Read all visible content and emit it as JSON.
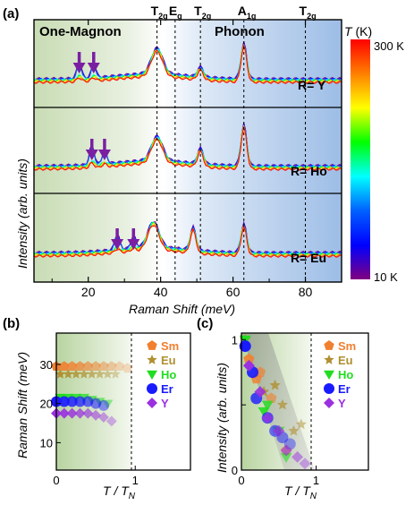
{
  "panel_a": {
    "label": "(a)",
    "region_left": "One-Magnon",
    "region_right": "Phonon",
    "colorbar": {
      "title_var": "T",
      "title_unit": " (K)",
      "top_label": "300 K",
      "bottom_label": "10 K",
      "stops": [
        "#ff0000",
        "#ff8000",
        "#ffff00",
        "#00ff00",
        "#00ffff",
        "#0060ff",
        "#0000ff",
        "#800080"
      ]
    },
    "modes": [
      {
        "label": "T",
        "sub": "2g",
        "x": 39
      },
      {
        "label": "E",
        "sub": "g",
        "x": 44
      },
      {
        "label": "T",
        "sub": "2g",
        "x": 51
      },
      {
        "label": "A",
        "sub": "1g",
        "x": 63
      },
      {
        "label": "T",
        "sub": "2g",
        "x": 80
      }
    ],
    "rows": [
      {
        "label": "R= Y",
        "magnon_arrows": [
          17.5,
          21.5
        ]
      },
      {
        "label": "R= Ho",
        "magnon_arrows": [
          21,
          24.5
        ]
      },
      {
        "label": "R= Eu",
        "magnon_arrows": [
          28,
          32.5
        ]
      }
    ],
    "xlabel": "Raman Shift (meV)",
    "ylabel": "Intensity (arb. units)",
    "xticks": [
      20,
      40,
      60,
      80
    ]
  },
  "panel_b": {
    "label": "(b)",
    "ylabel": "Raman Shift (meV)",
    "xlabel_main": "T / T",
    "xlabel_sub": "N",
    "yticks": [
      10,
      20,
      30
    ],
    "xticks": [
      0,
      1
    ],
    "legend": [
      {
        "name": "Sm",
        "color": "#f08030",
        "marker": "pentagon"
      },
      {
        "name": "Eu",
        "color": "#b09030",
        "marker": "star"
      },
      {
        "name": "Ho",
        "color": "#20dd20",
        "marker": "triangle"
      },
      {
        "name": "Er",
        "color": "#1a1aff",
        "marker": "circle"
      },
      {
        "name": "Y",
        "color": "#9a30e0",
        "marker": "diamond"
      }
    ]
  },
  "panel_c": {
    "label": "(c)",
    "ylabel": "Intensity (arb. units)",
    "xlabel_main": "T / T",
    "xlabel_sub": "N",
    "yticks": [
      0,
      0.5,
      1
    ],
    "ytick_labels": [
      "0",
      "",
      "1"
    ],
    "xticks": [
      0,
      1
    ]
  },
  "chart_data": [
    {
      "type": "line",
      "xlabel": "Raman Shift (meV)",
      "ylabel": "Intensity (arb. units)",
      "xlim": [
        5,
        90
      ],
      "series": [
        {
          "name": "R= Y",
          "peaks_meV": [
            17.5,
            21.5,
            39,
            51,
            63
          ]
        },
        {
          "name": "R= Ho",
          "peaks_meV": [
            21,
            24.5,
            39,
            51,
            63
          ]
        },
        {
          "name": "R= Eu",
          "peaks_meV": [
            28,
            32.5,
            38,
            49,
            63
          ]
        }
      ],
      "colorbar_range_K": [
        10,
        300
      ]
    },
    {
      "type": "scatter",
      "xlabel": "T / TN",
      "ylabel": "Raman Shift (meV)",
      "xlim": [
        0,
        1.7
      ],
      "ylim": [
        3,
        38
      ],
      "series": [
        {
          "name": "Sm",
          "x": [
            0.0,
            0.1,
            0.2,
            0.3,
            0.4,
            0.5,
            0.6,
            0.7,
            0.8,
            0.9
          ],
          "y": [
            29.5,
            29.5,
            29.5,
            29.5,
            29.5,
            29.5,
            29.5,
            29.5,
            29.5,
            29.0
          ]
        },
        {
          "name": "Eu",
          "x": [
            0.05,
            0.15,
            0.25,
            0.35,
            0.45,
            0.55,
            0.65,
            0.75
          ],
          "y": [
            27.5,
            27.5,
            27.5,
            27.5,
            27.5,
            27.5,
            27.5,
            27.5
          ]
        },
        {
          "name": "Ho",
          "x": [
            0.05,
            0.15,
            0.25,
            0.35,
            0.45,
            0.55,
            0.65
          ],
          "y": [
            21.5,
            21.5,
            21.5,
            21.5,
            21,
            20.5,
            20
          ]
        },
        {
          "name": "Er",
          "x": [
            0.0,
            0.1,
            0.2,
            0.3,
            0.4,
            0.5,
            0.6
          ],
          "y": [
            20.5,
            20.5,
            20.5,
            20.5,
            20.5,
            20,
            19.5
          ]
        },
        {
          "name": "Y",
          "x": [
            0.0,
            0.1,
            0.2,
            0.3,
            0.4,
            0.5,
            0.6,
            0.7
          ],
          "y": [
            17.5,
            17.5,
            17.5,
            17.5,
            17.5,
            17,
            16.5,
            15.5
          ]
        }
      ]
    },
    {
      "type": "scatter",
      "xlabel": "T / TN",
      "ylabel": "Intensity (arb. units)",
      "xlim": [
        0,
        1.7
      ],
      "ylim": [
        0,
        1.05
      ],
      "series": [
        {
          "name": "Sm",
          "x": [
            0.05,
            0.1,
            0.2,
            0.25,
            0.4,
            0.6
          ],
          "y": [
            0.95,
            0.85,
            0.7,
            0.75,
            0.55,
            0.15
          ]
        },
        {
          "name": "Eu",
          "x": [
            0.05,
            0.3,
            0.45,
            0.55,
            0.7,
            0.8
          ],
          "y": [
            1.0,
            0.6,
            0.65,
            0.5,
            0.3,
            0.35
          ]
        },
        {
          "name": "Ho",
          "x": [
            0.05,
            0.3,
            0.35,
            0.5,
            0.6
          ],
          "y": [
            1.0,
            0.45,
            0.5,
            0.3,
            0.1
          ]
        },
        {
          "name": "Er",
          "x": [
            0.05,
            0.15,
            0.2,
            0.35,
            0.45,
            0.55,
            0.65
          ],
          "y": [
            0.95,
            0.75,
            0.55,
            0.4,
            0.3,
            0.25,
            0.2
          ]
        },
        {
          "name": "Y",
          "x": [
            0.1,
            0.25,
            0.35,
            0.5,
            0.6,
            0.75,
            0.85
          ],
          "y": [
            0.8,
            0.6,
            0.4,
            0.3,
            0.15,
            0.1,
            0.05
          ]
        }
      ]
    }
  ]
}
